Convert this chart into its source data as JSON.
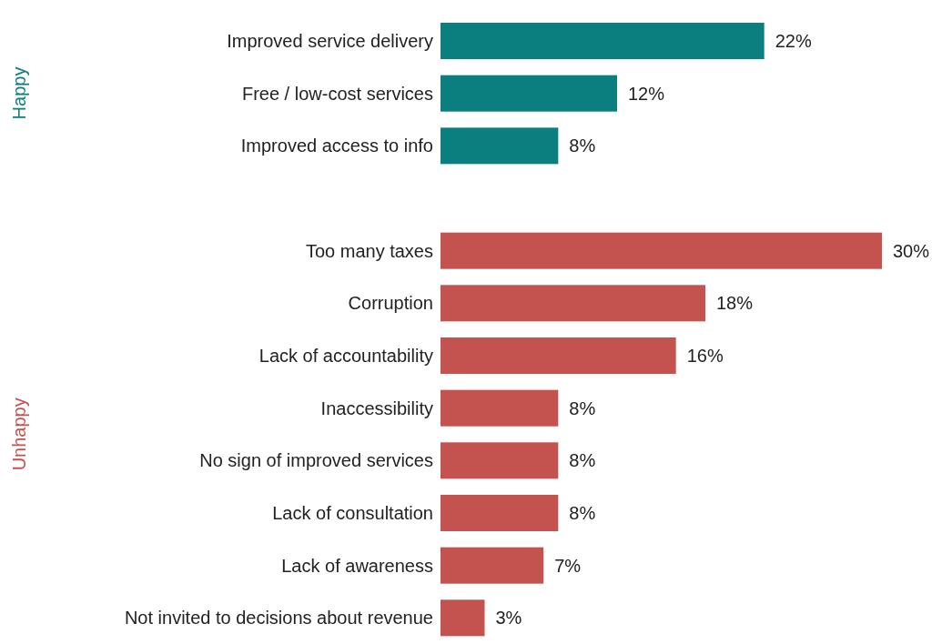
{
  "chart_data": {
    "type": "bar",
    "orientation": "horizontal",
    "stacked": true,
    "tick_labels": "y",
    "categories": [
      "Improved service delivery",
      "Free / low-cost services",
      "Improved access to info",
      null,
      "Too many taxes",
      "Corruption",
      "Lack of accountability",
      "Inaccessibility",
      "No sign of improved services",
      "Lack of consultation",
      "Lack of awareness",
      "Not invited to decisions about revenue"
    ],
    "series": [
      {
        "name": "Happy",
        "color": "#0b7f7f",
        "values": [
          22,
          12,
          8,
          null,
          null,
          null,
          null,
          null,
          null,
          null,
          null,
          null
        ],
        "value_labels": [
          "22%",
          "12%",
          "8%",
          null,
          null,
          null,
          null,
          null,
          null,
          null,
          null,
          null
        ]
      },
      {
        "name": "Unhappy",
        "color": "#c4524e",
        "values": [
          null,
          null,
          null,
          null,
          30,
          18,
          16,
          8,
          8,
          8,
          7,
          3
        ],
        "value_labels": [
          null,
          null,
          null,
          null,
          "30%",
          "18%",
          "16%",
          "8%",
          "8%",
          "8%",
          "7%",
          "3%"
        ]
      }
    ]
  }
}
